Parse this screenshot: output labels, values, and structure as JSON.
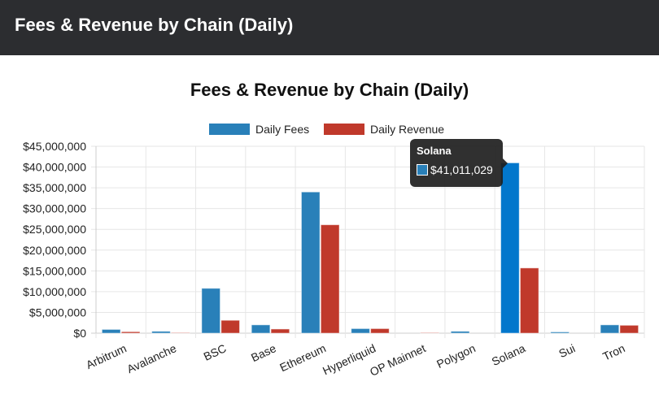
{
  "header": {
    "title": "Fees & Revenue by Chain (Daily)"
  },
  "chart_data": {
    "type": "bar",
    "title": "Fees & Revenue by Chain (Daily)",
    "categories": [
      "Arbitrum",
      "Avalanche",
      "BSC",
      "Base",
      "Ethereum",
      "Hyperliquid",
      "OP Mainnet",
      "Polygon",
      "Solana",
      "Sui",
      "Tron"
    ],
    "series": [
      {
        "name": "Daily Fees",
        "color": "#2980b9",
        "values": [
          900000,
          450000,
          10800000,
          2000000,
          34000000,
          1100000,
          0,
          450000,
          41011029,
          300000,
          2000000
        ]
      },
      {
        "name": "Daily Revenue",
        "color": "#c0392b",
        "values": [
          350000,
          100000,
          3100000,
          1000000,
          26100000,
          1100000,
          100000,
          0,
          15700000,
          0,
          1900000
        ]
      }
    ],
    "ylim": [
      0,
      45000000
    ],
    "yticks": [
      "$0",
      "$5,000,000",
      "$10,000,000",
      "$15,000,000",
      "$20,000,000",
      "$25,000,000",
      "$30,000,000",
      "$35,000,000",
      "$40,000,000",
      "$45,000,000"
    ],
    "grid": true,
    "legend": "top",
    "tooltip": {
      "title": "Solana",
      "value": "$41,011,029",
      "highlight_color": "#0277cc"
    }
  }
}
